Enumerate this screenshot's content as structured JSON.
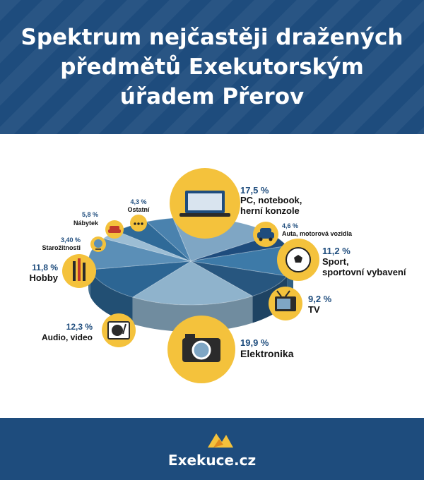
{
  "header": {
    "title_lines": [
      "Spektrum nejčastěji dražených",
      "předmětů Exekutorským",
      "úřadem Přerov"
    ]
  },
  "chart_data": {
    "type": "pie",
    "categories": [
      "PC, notebook, herní konzole",
      "Auta, motorová vozidla",
      "Sport, sportovní vybavení",
      "TV",
      "Elektronika",
      "Audio, video",
      "Hobby",
      "Starožitnosti",
      "Nábytek",
      "Ostatní"
    ],
    "values": [
      17.5,
      4.6,
      11.2,
      9.2,
      19.9,
      12.3,
      11.8,
      3.4,
      5.8,
      4.3
    ],
    "value_labels": [
      "17,5 %",
      "4,6 %",
      "11,2 %",
      "9,2 %",
      "19,9 %",
      "12,3 %",
      "11,8 %",
      "3,40 %",
      "5,8 %",
      "4,3 %"
    ],
    "slice_colors": [
      "#7fa6c4",
      "#1e4c7d",
      "#3d7aa8",
      "#27567f",
      "#8fb3cc",
      "#2c6593",
      "#5b8fb7",
      "#9cbdd4",
      "#2f6a98",
      "#4a82ae"
    ]
  },
  "colors": {
    "header": "#1e4c7d",
    "icon_circle": "#f4c23c",
    "percent_text": "#1e4c7d"
  },
  "icons": [
    "laptop-icon",
    "car-icon",
    "soccer-ball-icon",
    "tv-icon",
    "camera-icon",
    "turntable-icon",
    "brushes-icon",
    "globe-icon",
    "armchair-icon",
    "dots-icon"
  ],
  "footer": {
    "brand": "Exekuce.cz"
  }
}
